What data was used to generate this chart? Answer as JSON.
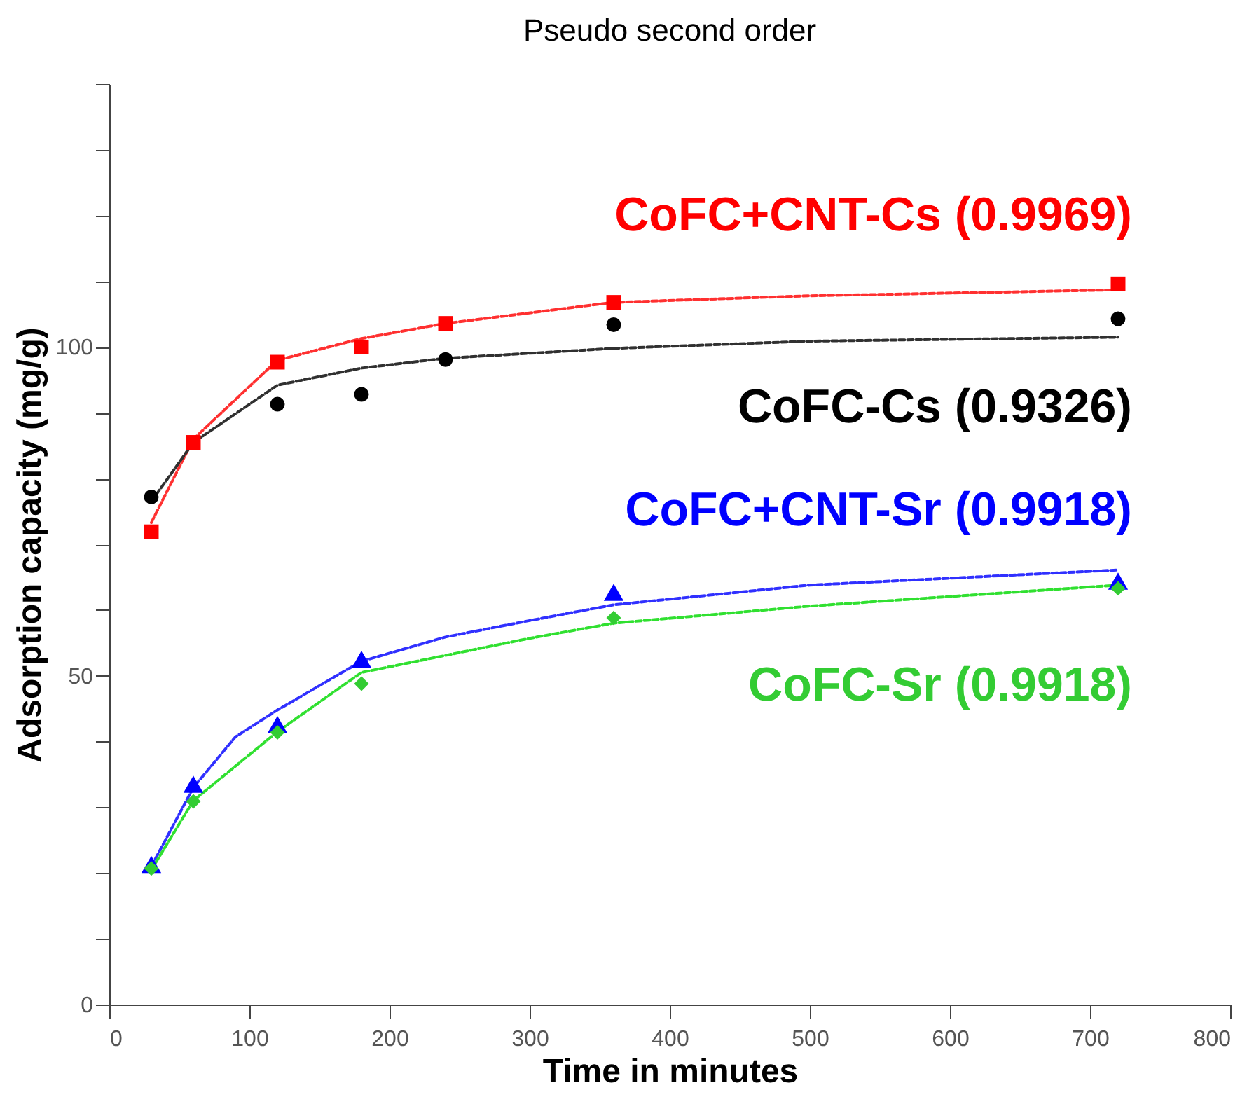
{
  "chart_data": {
    "type": "scatter",
    "title": "Pseudo second order",
    "xlabel": "Time in minutes",
    "ylabel": "Adsorption capacity (mg/g)",
    "xlim": [
      0,
      800
    ],
    "xticks": [
      0,
      100,
      200,
      300,
      400,
      500,
      600,
      700,
      800
    ],
    "ylim": [
      0,
      140
    ],
    "yticks": [
      0,
      {
        "value": 10,
        "label": null
      },
      {
        "value": 20,
        "label": null
      },
      {
        "value": 30,
        "label": null
      },
      {
        "value": 40,
        "label": null
      },
      50,
      {
        "value": 60,
        "label": null
      },
      {
        "value": 70,
        "label": null
      },
      {
        "value": 80,
        "label": null
      },
      {
        "value": 90,
        "label": null
      },
      100,
      {
        "value": 110,
        "label": null
      },
      {
        "value": 120,
        "label": null
      },
      {
        "value": 130,
        "label": null
      },
      {
        "value": 140,
        "label": null
      }
    ],
    "grid": false,
    "series": [
      {
        "type": "line",
        "color": "#ff3030",
        "line_style": "dashed",
        "marker": "none",
        "x": [
          30,
          60,
          120,
          180,
          240,
          360,
          500,
          720
        ],
        "values": [
          73.3,
          86,
          98,
          101.3,
          103.6,
          106.8,
          107.8,
          108.7
        ]
      },
      {
        "type": "line",
        "color": "#303030",
        "line_style": "dashed",
        "marker": "none",
        "x": [
          30,
          60,
          120,
          180,
          240,
          360,
          500,
          720
        ],
        "values": [
          76.5,
          85.5,
          94.2,
          96.8,
          98.3,
          99.8,
          100.9,
          101.5
        ]
      },
      {
        "type": "line",
        "color": "#3030ff",
        "line_style": "dashed",
        "marker": "none",
        "x": [
          30,
          60,
          90,
          120,
          180,
          240,
          300,
          360,
          500,
          720
        ],
        "values": [
          21,
          33,
          40.7,
          44.8,
          52.2,
          55.9,
          58.4,
          60.8,
          63.8,
          66.1
        ]
      },
      {
        "type": "line",
        "color": "#30e030",
        "line_style": "dashed",
        "marker": "none",
        "x": [
          30,
          60,
          120,
          180,
          240,
          300,
          360,
          500,
          720
        ],
        "values": [
          20.5,
          31,
          41.5,
          50.5,
          53.1,
          55.7,
          58,
          60.6,
          63.8
        ]
      },
      {
        "name": "CoFC+CNT-Cs (0.9969)",
        "color": "#ff0000",
        "marker": "square",
        "x": [
          30,
          60,
          120,
          180,
          240,
          360,
          720
        ],
        "values": [
          71.9,
          85.5,
          97.7,
          100,
          103.6,
          106.8,
          109.6
        ]
      },
      {
        "name": "CoFC-Cs (0.9326)",
        "color": "#000000",
        "marker": "circle",
        "x": [
          30,
          120,
          180,
          240,
          360,
          720
        ],
        "values": [
          77.2,
          91.3,
          92.8,
          98.1,
          103.4,
          104.3
        ]
      },
      {
        "name": "CoFC+CNT-Sr (0.9918)",
        "color": "#0000ff",
        "marker": "triangle",
        "x": [
          30,
          60,
          120,
          180,
          360,
          720
        ],
        "values": [
          21.3,
          33.5,
          42.6,
          52.5,
          62.7,
          64.4
        ]
      },
      {
        "name": "CoFC-Sr (0.9918)",
        "color": "#33cc33",
        "marker": "diamond",
        "x": [
          30,
          60,
          120,
          180,
          360,
          720
        ],
        "values": [
          20.7,
          30.9,
          41.4,
          48.8,
          58.8,
          63.3
        ]
      }
    ]
  }
}
